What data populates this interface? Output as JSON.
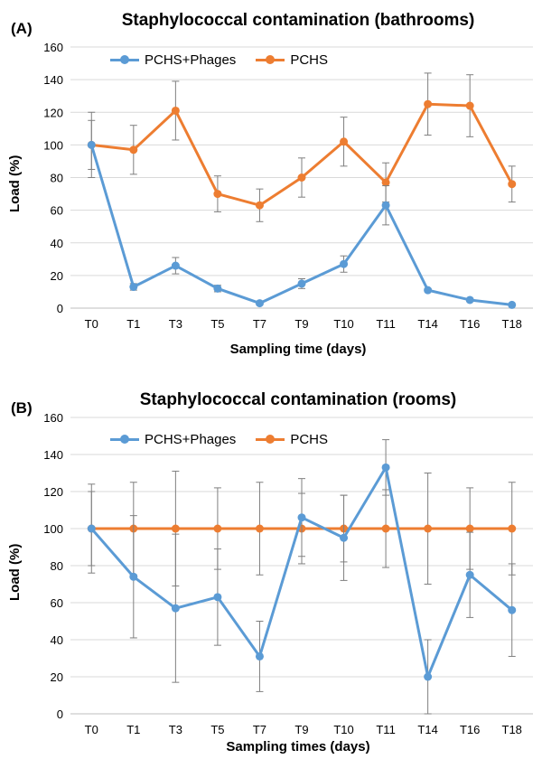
{
  "colors": {
    "phages": "#5B9BD5",
    "pchs": "#ED7D31",
    "error_bar": "#7f7f7f",
    "grid": "#d9d9d9"
  },
  "chart_data": [
    {
      "type": "line",
      "panel_label": "(A)",
      "title": "Staphylococcal contamination (bathrooms)",
      "xlabel": "Sampling time (days)",
      "ylabel": "Load (%)",
      "ylim": [
        0,
        160
      ],
      "yticks": [
        0,
        20,
        40,
        60,
        80,
        100,
        120,
        140,
        160
      ],
      "grid": true,
      "legend_position": "top-left",
      "categories": [
        "T0",
        "T1",
        "T3",
        "T5",
        "T7",
        "T9",
        "T10",
        "T11",
        "T14",
        "T16",
        "T18"
      ],
      "series": [
        {
          "name": "PCHS+Phages",
          "color": "#5B9BD5",
          "values": [
            100,
            13,
            26,
            12,
            3,
            15,
            27,
            63,
            11,
            5,
            2
          ],
          "errors": [
            15,
            2,
            5,
            2,
            1,
            3,
            5,
            12,
            1,
            1,
            0
          ]
        },
        {
          "name": "PCHS",
          "color": "#ED7D31",
          "values": [
            100,
            97,
            121,
            70,
            63,
            80,
            102,
            77,
            125,
            124,
            76
          ],
          "errors": [
            20,
            15,
            18,
            11,
            10,
            12,
            15,
            12,
            19,
            19,
            11
          ]
        }
      ]
    },
    {
      "type": "line",
      "panel_label": "(B)",
      "title": "Staphylococcal contamination (rooms)",
      "xlabel": "Sampling times (days)",
      "ylabel": "Load (%)",
      "ylim": [
        0,
        160
      ],
      "yticks": [
        0,
        20,
        40,
        60,
        80,
        100,
        120,
        140,
        160
      ],
      "grid": true,
      "legend_position": "top-left",
      "categories": [
        "T0",
        "T1",
        "T3",
        "T5",
        "T7",
        "T9",
        "T10",
        "T11",
        "T14",
        "T16",
        "T18"
      ],
      "series": [
        {
          "name": "PCHS+Phages",
          "color": "#5B9BD5",
          "values": [
            100,
            74,
            57,
            63,
            31,
            106,
            95,
            133,
            20,
            75,
            56
          ],
          "errors": [
            24,
            33,
            40,
            26,
            19,
            21,
            23,
            15,
            20,
            23,
            25
          ]
        },
        {
          "name": "PCHS",
          "color": "#ED7D31",
          "values": [
            100,
            100,
            100,
            100,
            100,
            100,
            100,
            100,
            100,
            100,
            100
          ],
          "errors": [
            20,
            25,
            31,
            22,
            25,
            19,
            18,
            21,
            30,
            22,
            25
          ]
        }
      ]
    }
  ]
}
